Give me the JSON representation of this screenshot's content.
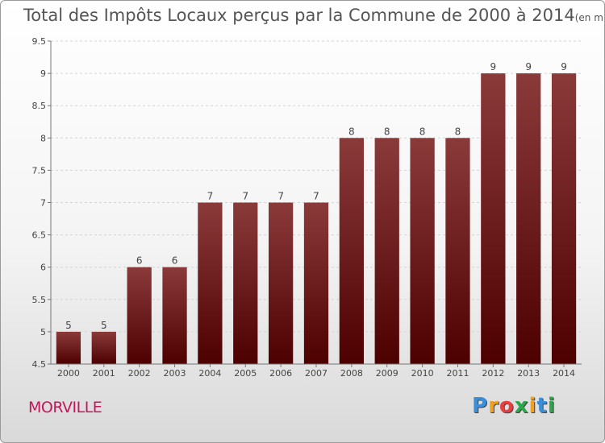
{
  "title": "Total des Impôts Locaux perçus par la Commune de 2000 à 2014",
  "unit_label": "(en milliers d'€)",
  "commune": "MORVILLE",
  "logo": {
    "letters": [
      "P",
      "r",
      "o",
      "x",
      "i",
      "t",
      "i"
    ],
    "colors": [
      "#3b8fd8",
      "#f0a020",
      "#e84040",
      "#2aa84a",
      "#f0a020",
      "#3b8fd8",
      "#2aa84a"
    ]
  },
  "chart_data": {
    "type": "bar",
    "title": "Total des Impôts Locaux perçus par la Commune de 2000 à 2014",
    "categories": [
      "2000",
      "2001",
      "2002",
      "2003",
      "2004",
      "2005",
      "2006",
      "2007",
      "2008",
      "2009",
      "2010",
      "2011",
      "2012",
      "2013",
      "2014"
    ],
    "values": [
      5,
      5,
      6,
      6,
      7,
      7,
      7,
      7,
      8,
      8,
      8,
      8,
      9,
      9,
      9
    ],
    "ylim": [
      4.5,
      9.5
    ],
    "yticks": [
      "4.5",
      "5",
      "5.5",
      "6",
      "6.5",
      "7",
      "7.5",
      "8",
      "8.5",
      "9",
      "9.5"
    ],
    "xlabel": "",
    "ylabel": "",
    "grid": true,
    "bar_color_top": "#8b3a3a",
    "bar_color_bottom": "#4d0000"
  }
}
